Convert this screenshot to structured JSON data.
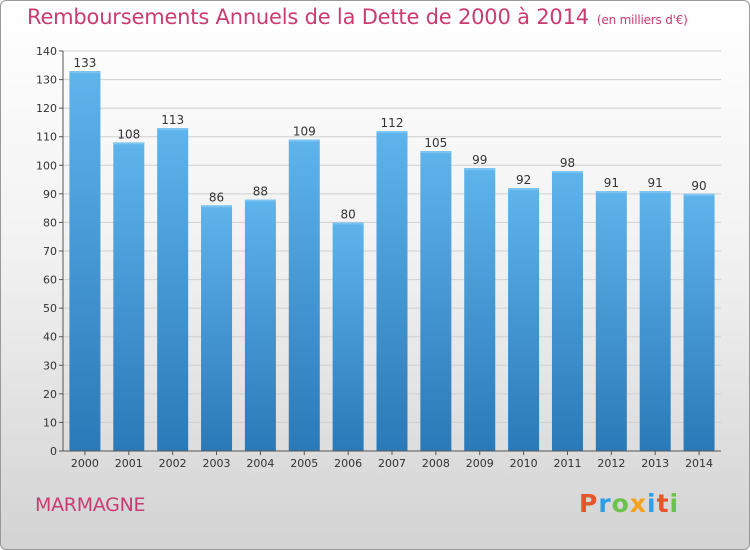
{
  "header": {
    "title": "Remboursements Annuels de la Dette de 2000 à 2014",
    "subtitle": "(en milliers d'€)"
  },
  "footer": {
    "commune": "MARMAGNE",
    "brand": "Proxiti"
  },
  "colors": {
    "title": "#cc3b70",
    "bar_top": "#5fb4ec",
    "bar_bottom": "#2a79b8",
    "brand_letters": [
      "#e8542a",
      "#2e9ee6",
      "#6cc24a",
      "#f4a11d",
      "#2e9ee6",
      "#e8542a",
      "#6cc24a"
    ]
  },
  "chart_data": {
    "type": "bar",
    "categories": [
      "2000",
      "2001",
      "2002",
      "2003",
      "2004",
      "2005",
      "2006",
      "2007",
      "2008",
      "2009",
      "2010",
      "2011",
      "2012",
      "2013",
      "2014"
    ],
    "values": [
      133,
      108,
      113,
      86,
      88,
      109,
      80,
      112,
      105,
      99,
      92,
      98,
      91,
      91,
      90
    ],
    "ylim": [
      0,
      140
    ],
    "yticks": [
      0,
      10,
      20,
      30,
      40,
      50,
      60,
      70,
      80,
      90,
      100,
      110,
      120,
      130,
      140
    ],
    "grid": true,
    "data_labels": true
  }
}
